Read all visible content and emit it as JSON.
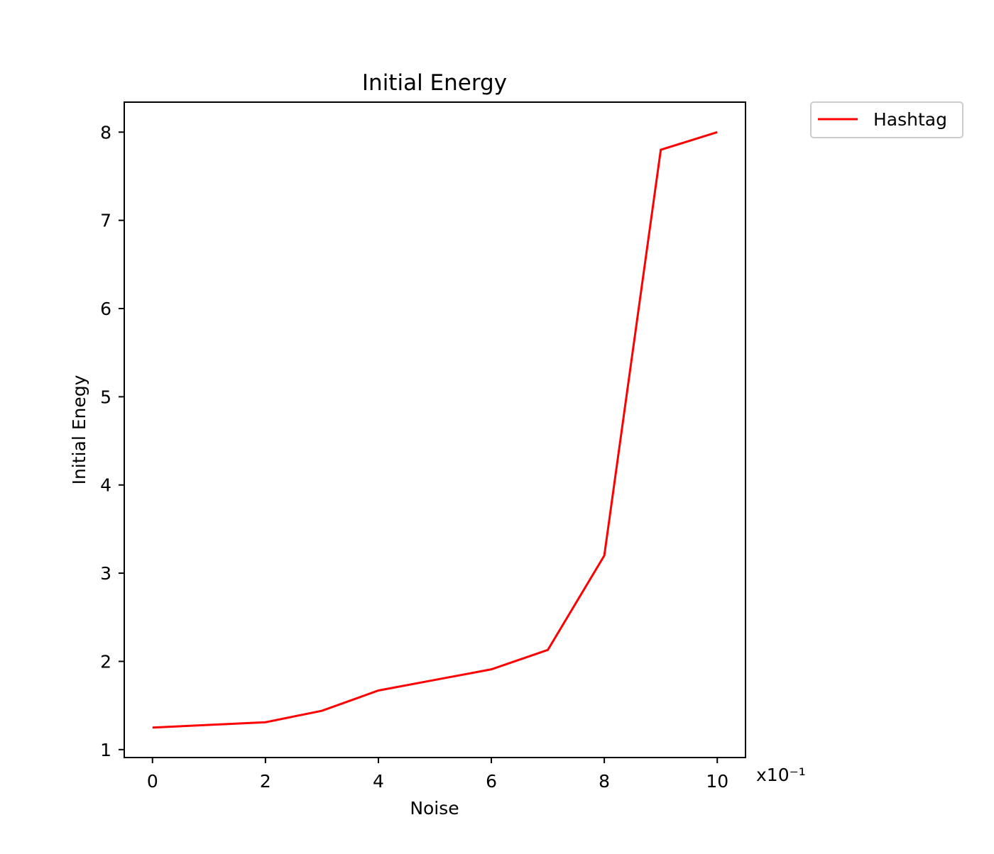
{
  "chart_data": {
    "type": "line",
    "title": "Initial Energy",
    "xlabel": "Noise",
    "ylabel": "Initial Enegy",
    "x_offset_label": "x10⁻¹",
    "x_ticks": [
      "0",
      "2",
      "4",
      "6",
      "8",
      "10"
    ],
    "y_ticks": [
      "1",
      "2",
      "3",
      "4",
      "5",
      "6",
      "7",
      "8"
    ],
    "xlim": [
      -0.5,
      10.5
    ],
    "ylim": [
      0.91,
      8.34
    ],
    "grid": false,
    "legend_position": "outside-top-right",
    "series": [
      {
        "name": "Hashtag",
        "color": "#ff0000",
        "x": [
          0,
          2,
          3,
          4,
          5,
          6,
          7,
          8,
          9,
          10
        ],
        "y": [
          1.25,
          1.31,
          1.44,
          1.67,
          1.79,
          1.91,
          2.13,
          3.2,
          7.8,
          8.0
        ]
      }
    ]
  }
}
